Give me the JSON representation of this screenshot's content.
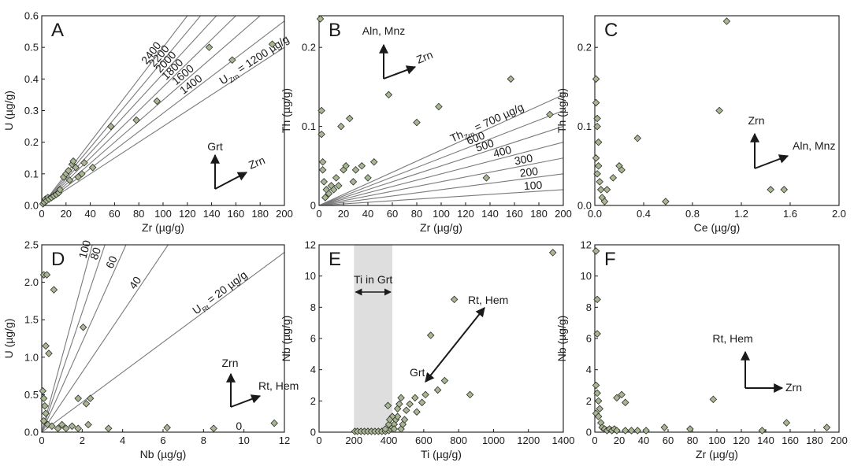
{
  "chart_data": [
    {
      "type": "scatter",
      "panel": "A",
      "xlabel": "Zr (µg/g)",
      "ylabel": "U (µg/g)",
      "xlim": [
        0,
        200
      ],
      "ylim": [
        0,
        0.6
      ],
      "xticks": [
        0,
        20,
        40,
        60,
        80,
        100,
        120,
        140,
        160,
        180,
        200
      ],
      "xticklabels": [
        "0",
        "20",
        "40",
        "60",
        "80",
        "100",
        "120",
        "140",
        "160",
        "180",
        "200"
      ],
      "yticks": [
        0,
        0.1,
        0.2,
        0.3,
        0.4,
        0.5,
        0.6
      ],
      "yticklabels": [
        "0.0",
        "0.1",
        "0.2",
        "0.3",
        "0.4",
        "0.5",
        "0.6"
      ],
      "reference_lines": [
        {
          "slope": 0.0025,
          "label": "U",
          "sub": "Zrn",
          "suffix": " = 1200 µg/g",
          "x": 150
        },
        {
          "slope": 0.002917,
          "label": "1400",
          "x": 118
        },
        {
          "slope": 0.003333,
          "label": "1600",
          "x": 112
        },
        {
          "slope": 0.00375,
          "label": "1800",
          "x": 104
        },
        {
          "slope": 0.004167,
          "label": "2000",
          "x": 99
        },
        {
          "slope": 0.004583,
          "label": "2200",
          "x": 94
        },
        {
          "slope": 0.005,
          "label": "2400",
          "x": 88
        }
      ],
      "points": [
        [
          1,
          0.005
        ],
        [
          2,
          0.01
        ],
        [
          3,
          0.02
        ],
        [
          4,
          0.015
        ],
        [
          5,
          0.025
        ],
        [
          6,
          0.02
        ],
        [
          8,
          0.025
        ],
        [
          10,
          0.03
        ],
        [
          12,
          0.035
        ],
        [
          14,
          0.04
        ],
        [
          15,
          0.05
        ],
        [
          18,
          0.09
        ],
        [
          20,
          0.1
        ],
        [
          22,
          0.11
        ],
        [
          23,
          0.08
        ],
        [
          25,
          0.13
        ],
        [
          26,
          0.14
        ],
        [
          28,
          0.12
        ],
        [
          30,
          0.09
        ],
        [
          33,
          0.1
        ],
        [
          35,
          0.135
        ],
        [
          42,
          0.12
        ],
        [
          57,
          0.25
        ],
        [
          78,
          0.27
        ],
        [
          95,
          0.33
        ],
        [
          138,
          0.5
        ],
        [
          157,
          0.46
        ],
        [
          190,
          0.51
        ]
      ],
      "arrows": [
        {
          "label": "Grt",
          "dir": "up"
        },
        {
          "label": "Zrn",
          "dir": "up-right"
        }
      ]
    },
    {
      "type": "scatter",
      "panel": "B",
      "xlabel": "Zr (µg/g)",
      "ylabel": "Th (µg/g)",
      "xlim": [
        0,
        200
      ],
      "ylim": [
        0,
        0.24
      ],
      "xticks": [
        0,
        20,
        40,
        60,
        80,
        100,
        120,
        140,
        160,
        180,
        200
      ],
      "xticklabels": [
        "0",
        "20",
        "40",
        "60",
        "80",
        "100",
        "120",
        "140",
        "160",
        "180",
        "200"
      ],
      "yticks": [
        0,
        0.1,
        0.2
      ],
      "yticklabels": [
        "0",
        "0.1",
        "0.2"
      ],
      "reference_lines": [
        {
          "slope": 0.0001,
          "label": "100",
          "x": 168
        },
        {
          "slope": 0.0002,
          "label": "200",
          "x": 165
        },
        {
          "slope": 0.0003,
          "label": "300",
          "x": 161
        },
        {
          "slope": 0.0004,
          "label": "400",
          "x": 144
        },
        {
          "slope": 0.0005,
          "label": "500",
          "x": 130
        },
        {
          "slope": 0.0006,
          "label": "600",
          "x": 123
        },
        {
          "slope": 0.0007,
          "label": "Th",
          "sub": "Zrn",
          "suffix": " = 700 µg/g",
          "x": 110
        }
      ],
      "points": [
        [
          1,
          0.236
        ],
        [
          2,
          0.12
        ],
        [
          2,
          0.09
        ],
        [
          3,
          0.045
        ],
        [
          3,
          0.055
        ],
        [
          4,
          0.03
        ],
        [
          5,
          0.01
        ],
        [
          6,
          0.02
        ],
        [
          8,
          0.015
        ],
        [
          10,
          0.025
        ],
        [
          12,
          0.02
        ],
        [
          14,
          0.035
        ],
        [
          16,
          0.025
        ],
        [
          18,
          0.1
        ],
        [
          20,
          0.045
        ],
        [
          22,
          0.05
        ],
        [
          25,
          0.11
        ],
        [
          28,
          0.03
        ],
        [
          30,
          0.045
        ],
        [
          35,
          0.05
        ],
        [
          40,
          0.035
        ],
        [
          45,
          0.055
        ],
        [
          57,
          0.14
        ],
        [
          80,
          0.105
        ],
        [
          98,
          0.125
        ],
        [
          137,
          0.035
        ],
        [
          157,
          0.16
        ],
        [
          189,
          0.115
        ]
      ],
      "arrows": [
        {
          "label": "Aln, Mnz",
          "dir": "up"
        },
        {
          "label": "Zrn",
          "dir": "up-right"
        }
      ]
    },
    {
      "type": "scatter",
      "panel": "C",
      "xlabel": "Ce (µg/g)",
      "ylabel": "Th (µg/g)",
      "xlim": [
        0,
        2.0
      ],
      "ylim": [
        0,
        0.24
      ],
      "xticks": [
        0,
        0.4,
        0.8,
        1.2,
        1.6,
        2.0
      ],
      "xticklabels": [
        "0.0",
        "0.4",
        "0.8",
        "1.2",
        "1.6",
        "2.0"
      ],
      "yticks": [
        0,
        0.1,
        0.2
      ],
      "yticklabels": [
        "0.0",
        "0.1",
        "0.2"
      ],
      "points": [
        [
          0.01,
          0.16
        ],
        [
          0.01,
          0.13
        ],
        [
          0.02,
          0.11
        ],
        [
          0.02,
          0.1
        ],
        [
          0.03,
          0.08
        ],
        [
          0.01,
          0.06
        ],
        [
          0.03,
          0.05
        ],
        [
          0.02,
          0.04
        ],
        [
          0.04,
          0.03
        ],
        [
          0.05,
          0.02
        ],
        [
          0.06,
          0.01
        ],
        [
          0.08,
          0.005
        ],
        [
          0.1,
          0.02
        ],
        [
          0.15,
          0.035
        ],
        [
          0.2,
          0.05
        ],
        [
          0.22,
          0.045
        ],
        [
          0.35,
          0.085
        ],
        [
          0.58,
          0.005
        ],
        [
          1.02,
          0.12
        ],
        [
          1.08,
          0.233
        ],
        [
          1.44,
          0.02
        ],
        [
          1.55,
          0.02
        ]
      ],
      "arrows": [
        {
          "label": "Zrn",
          "dir": "up"
        },
        {
          "label": "Aln, Mnz",
          "dir": "up-right"
        }
      ]
    },
    {
      "type": "scatter",
      "panel": "D",
      "xlabel": "Nb (µg/g)",
      "ylabel": "U (µg/g)",
      "xlim": [
        0,
        12
      ],
      "ylim": [
        0,
        2.5
      ],
      "xticks": [
        0,
        2,
        4,
        6,
        8,
        10,
        12
      ],
      "xticklabels": [
        "0",
        "2",
        "4",
        "6",
        "8",
        "10",
        "12"
      ],
      "yticks": [
        0,
        0.5,
        1.0,
        1.5,
        2.0,
        2.5
      ],
      "yticklabels": [
        "0.0",
        "0.5",
        "1.0",
        "1.5",
        "2.0",
        "2.5"
      ],
      "reference_lines": [
        {
          "slope": 0.0,
          "label": "0",
          "x": 9.6
        },
        {
          "slope": 0.2,
          "label": "U",
          "sub": "Rt",
          "suffix": " = 20 µg/g",
          "x": 7.7
        },
        {
          "slope": 0.4,
          "label": "40",
          "x": 4.7
        },
        {
          "slope": 0.6,
          "label": "60",
          "x": 3.6
        },
        {
          "slope": 0.8,
          "label": "80",
          "x": 2.85
        },
        {
          "slope": 1.0,
          "label": "100",
          "x": 2.3
        }
      ],
      "points": [
        [
          0.1,
          2.1
        ],
        [
          0.25,
          2.1
        ],
        [
          0.6,
          1.9
        ],
        [
          0.2,
          1.15
        ],
        [
          0.35,
          1.05
        ],
        [
          2.05,
          1.4
        ],
        [
          0.05,
          0.55
        ],
        [
          0.1,
          0.45
        ],
        [
          0.15,
          0.35
        ],
        [
          0.2,
          0.25
        ],
        [
          0.1,
          0.15
        ],
        [
          0.3,
          0.1
        ],
        [
          0.5,
          0.08
        ],
        [
          0.8,
          0.05
        ],
        [
          1.0,
          0.1
        ],
        [
          1.2,
          0.05
        ],
        [
          1.5,
          0.08
        ],
        [
          1.8,
          0.05
        ],
        [
          1.8,
          0.45
        ],
        [
          2.2,
          0.38
        ],
        [
          2.4,
          0.45
        ],
        [
          2.3,
          0.1
        ],
        [
          3.3,
          0.05
        ],
        [
          6.2,
          0.06
        ],
        [
          8.5,
          0.05
        ],
        [
          11.5,
          0.12
        ]
      ],
      "arrows": [
        {
          "label": "Zrn",
          "dir": "up"
        },
        {
          "label": "Rt, Hem",
          "dir": "up-right"
        }
      ]
    },
    {
      "type": "scatter",
      "panel": "E",
      "xlabel": "Ti (µg/g)",
      "ylabel": "Nb (µg/g)",
      "xlim": [
        0,
        1400
      ],
      "ylim": [
        0,
        12
      ],
      "xticks": [
        0,
        200,
        400,
        600,
        800,
        1000,
        1200,
        1400
      ],
      "xticklabels": [
        "0",
        "200",
        "400",
        "600",
        "800",
        "1000",
        "1200",
        "1400"
      ],
      "yticks": [
        0,
        2,
        4,
        6,
        8,
        10,
        12
      ],
      "yticklabels": [
        "0",
        "2",
        "4",
        "6",
        "8",
        "10",
        "12"
      ],
      "shaded_band": {
        "x0": 200,
        "x1": 420,
        "label": "Ti in Grt"
      },
      "points": [
        [
          205,
          0.05
        ],
        [
          220,
          0.05
        ],
        [
          240,
          0.05
        ],
        [
          260,
          0.05
        ],
        [
          280,
          0.05
        ],
        [
          300,
          0.05
        ],
        [
          320,
          0.05
        ],
        [
          340,
          0.05
        ],
        [
          360,
          0.05
        ],
        [
          380,
          0.05
        ],
        [
          400,
          0.1
        ],
        [
          410,
          0.2
        ],
        [
          420,
          0.3
        ],
        [
          430,
          0.5
        ],
        [
          440,
          0.8
        ],
        [
          450,
          1.0
        ],
        [
          450,
          1.5
        ],
        [
          460,
          1.8
        ],
        [
          470,
          2.2
        ],
        [
          430,
          0.2
        ],
        [
          470,
          0.2
        ],
        [
          480,
          0.5
        ],
        [
          490,
          0.8
        ],
        [
          380,
          0.2
        ],
        [
          400,
          0.5
        ],
        [
          420,
          1.0
        ],
        [
          395,
          1.7
        ],
        [
          405,
          0.8
        ],
        [
          500,
          1.4
        ],
        [
          520,
          1.8
        ],
        [
          550,
          2.2
        ],
        [
          560,
          1.3
        ],
        [
          590,
          1.9
        ],
        [
          610,
          2.4
        ],
        [
          640,
          6.2
        ],
        [
          680,
          2.7
        ],
        [
          720,
          3.3
        ],
        [
          775,
          8.5
        ],
        [
          865,
          2.4
        ],
        [
          1340,
          11.5
        ]
      ],
      "arrows": [
        {
          "label": "Rt, Hem",
          "dir": "diag-double"
        },
        {
          "label": "Grt",
          "dir": "diag-double"
        }
      ]
    },
    {
      "type": "scatter",
      "panel": "F",
      "xlabel": "Zr (µg/g)",
      "ylabel": "Nb (µg/g)",
      "xlim": [
        0,
        200
      ],
      "ylim": [
        0,
        12
      ],
      "xticks": [
        0,
        20,
        40,
        60,
        80,
        100,
        120,
        140,
        160,
        180,
        200
      ],
      "xticklabels": [
        "0",
        "20",
        "40",
        "60",
        "80",
        "100",
        "120",
        "140",
        "160",
        "180",
        "200"
      ],
      "yticks": [
        0,
        2,
        4,
        6,
        8,
        10,
        12
      ],
      "yticklabels": [
        "0",
        "2",
        "4",
        "6",
        "8",
        "10",
        "12"
      ],
      "points": [
        [
          1,
          11.6
        ],
        [
          2,
          8.5
        ],
        [
          2,
          6.3
        ],
        [
          1,
          3.0
        ],
        [
          2,
          2.5
        ],
        [
          3,
          2.0
        ],
        [
          4,
          1.5
        ],
        [
          1,
          1.2
        ],
        [
          3,
          1.0
        ],
        [
          5,
          0.6
        ],
        [
          6,
          0.3
        ],
        [
          8,
          0.2
        ],
        [
          10,
          0.1
        ],
        [
          12,
          0.2
        ],
        [
          14,
          0.1
        ],
        [
          16,
          0.2
        ],
        [
          18,
          0.1
        ],
        [
          18,
          2.2
        ],
        [
          22,
          2.4
        ],
        [
          25,
          0.1
        ],
        [
          25,
          1.9
        ],
        [
          30,
          0.1
        ],
        [
          35,
          0.1
        ],
        [
          42,
          0.1
        ],
        [
          57,
          0.3
        ],
        [
          78,
          0.2
        ],
        [
          97,
          2.1
        ],
        [
          137,
          0.1
        ],
        [
          157,
          0.6
        ],
        [
          190,
          0.3
        ]
      ],
      "arrows": [
        {
          "label": "Rt, Hem",
          "dir": "up"
        },
        {
          "label": "Zrn",
          "dir": "right"
        }
      ]
    }
  ],
  "colors": {
    "marker_fill": "#a8b792",
    "marker_edge": "#2c2c2c",
    "line": "#7a7a7a",
    "band": "#dedede",
    "axis": "#1a1a1a"
  }
}
